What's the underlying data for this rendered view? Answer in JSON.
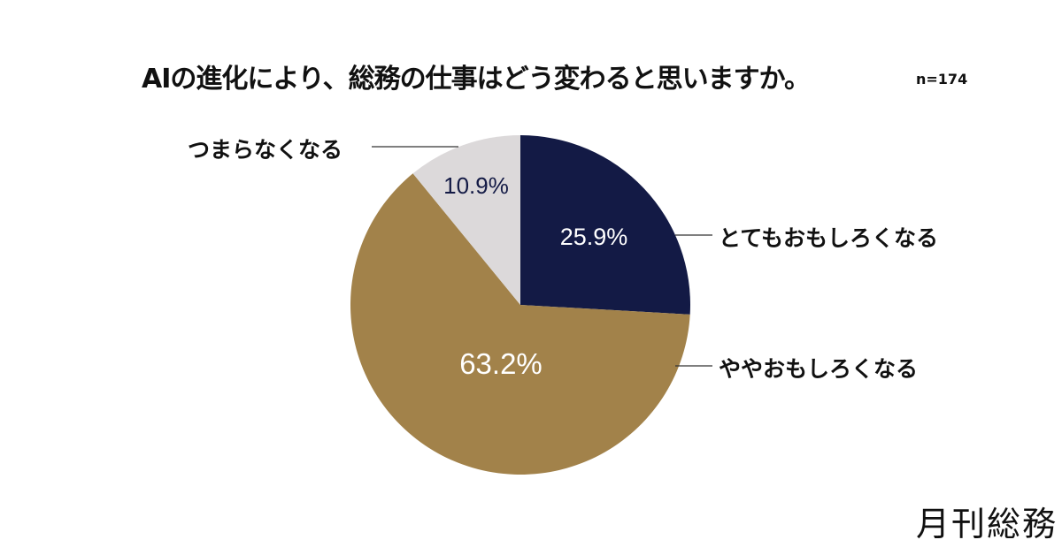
{
  "title": "AIの進化により、総務の仕事はどう変わると思いますか。",
  "sample": "n=174",
  "brand": "月刊総務",
  "chart_data": {
    "type": "pie",
    "title": "AIの進化により、総務の仕事はどう変わると思いますか。",
    "subtitle": "n=174",
    "categories": [
      "とてもおもしろくなる",
      "ややおもしろくなる",
      "つまらなくなる"
    ],
    "values": [
      25.9,
      63.2,
      10.9
    ],
    "colors": [
      "#131a45",
      "#a2824a",
      "#dcd9da"
    ],
    "value_labels": [
      "25.9%",
      "63.2%",
      "10.9%"
    ]
  }
}
